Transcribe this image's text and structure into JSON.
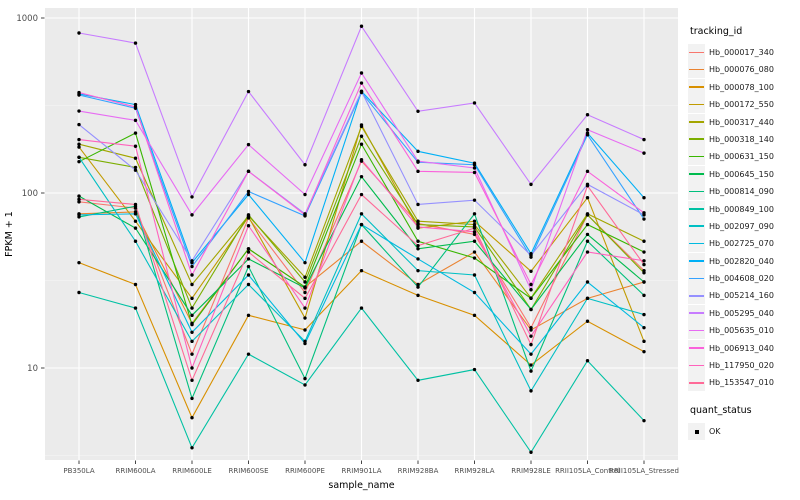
{
  "figure": {
    "background": "#ffffff",
    "panel_background": "#EBEBEB",
    "grid_major_color": "#FFFFFF",
    "grid_minor_color": "#F7F7F7",
    "tick_label_color": "#4D4D4D",
    "axis_title_color": "#000000"
  },
  "legend": {
    "tracking_title": "tracking_id",
    "quant_title": "quant_status",
    "quant_entries": [
      {
        "label": "OK",
        "marker": "black-square-point"
      }
    ]
  },
  "chart_data": {
    "type": "line",
    "title": "",
    "xlabel": "sample_name",
    "ylabel": "FPKM + 1",
    "y_scale": "log10",
    "y_ticks": [
      10,
      100,
      1000
    ],
    "y_minor_ticks": [
      3.162,
      31.62,
      316.2
    ],
    "ylim": [
      3.0,
      1140
    ],
    "grid": "on",
    "legend_position": "right",
    "point_color": "#000000",
    "categories": [
      "PB350LA",
      "RRIM600LA",
      "RRIM600LE",
      "RRIM600SE",
      "RRIM600PE",
      "RRIM901LA",
      "RRIM928BA",
      "RRIM928LA",
      "RRIM928LE",
      "RRII105LA_Control",
      "RRII105LA_Stressed"
    ],
    "series": [
      {
        "name": "Hb_000017_340",
        "color": "#F8766D",
        "values": [
          89,
          82,
          12,
          72,
          27,
          152,
          67,
          58,
          17,
          75,
          36
        ]
      },
      {
        "name": "Hb_000076_080",
        "color": "#EA8331",
        "values": [
          76,
          78,
          18,
          48,
          29,
          53,
          30,
          46,
          16.5,
          25,
          31
        ]
      },
      {
        "name": "Hb_000078_100",
        "color": "#D89000",
        "values": [
          40,
          30,
          5.2,
          20,
          16.5,
          36,
          26,
          20,
          10.4,
          18.5,
          12.4
        ]
      },
      {
        "name": "Hb_000172_550",
        "color": "#C09B00",
        "values": [
          183,
          69,
          25,
          73,
          19.3,
          245,
          63,
          69,
          35.7,
          94,
          14.2
        ]
      },
      {
        "name": "Hb_000317_440",
        "color": "#A3A500",
        "values": [
          190,
          158,
          30,
          74,
          33,
          240,
          69,
          66,
          25.1,
          76,
          53
        ]
      },
      {
        "name": "Hb_000318_140",
        "color": "#7CAE00",
        "values": [
          160,
          140,
          22,
          75,
          31,
          211,
          66,
          64,
          21.6,
          75,
          35
        ]
      },
      {
        "name": "Hb_000631_150",
        "color": "#39B600",
        "values": [
          151,
          220,
          17.7,
          48,
          29,
          190,
          53,
          42.5,
          25,
          66,
          46
        ]
      },
      {
        "name": "Hb_000645_150",
        "color": "#00BB4E",
        "values": [
          96,
          63,
          20,
          42,
          28.7,
          124,
          48,
          53,
          21.6,
          58,
          31
        ]
      },
      {
        "name": "Hb_000814_090",
        "color": "#00BF7D",
        "values": [
          73,
          84,
          6.7,
          38,
          8.7,
          66,
          29,
          76,
          9.6,
          53,
          26
        ]
      },
      {
        "name": "Hb_000849_100",
        "color": "#00C1A3",
        "values": [
          27,
          22,
          3.5,
          12,
          8.0,
          22,
          8.5,
          9.8,
          3.3,
          11,
          5.0
        ]
      },
      {
        "name": "Hb_002097_090",
        "color": "#00BFC4",
        "values": [
          160,
          53,
          14.2,
          30,
          14.2,
          76,
          36,
          34,
          7.4,
          25,
          20.2
        ]
      },
      {
        "name": "Hb_002725_070",
        "color": "#00BAE0",
        "values": [
          75,
          76,
          16,
          34,
          13.8,
          66,
          42,
          27,
          12,
          31,
          17
        ]
      },
      {
        "name": "Hb_002820_040",
        "color": "#00B0F6",
        "values": [
          368,
          320,
          40,
          98,
          40,
          381,
          173,
          148,
          45,
          220,
          94
        ]
      },
      {
        "name": "Hb_004608_020",
        "color": "#35A2FF",
        "values": [
          363,
          305,
          38,
          102,
          74,
          375,
          150,
          145,
          43,
          215,
          71
        ]
      },
      {
        "name": "Hb_005214_160",
        "color": "#9590FF",
        "values": [
          246,
          135,
          41,
          133,
          76,
          381,
          86,
          91,
          44,
          112,
          75
        ]
      },
      {
        "name": "Hb_005295_040",
        "color": "#C77CFF",
        "values": [
          821,
          719,
          95,
          380,
          145,
          897,
          293,
          327,
          112,
          280,
          202
        ]
      },
      {
        "name": "Hb_005635_010",
        "color": "#E76BF3",
        "values": [
          294,
          260,
          75,
          189,
          98,
          485,
          152,
          139,
          28,
          230,
          169
        ]
      },
      {
        "name": "Hb_006913_040",
        "color": "#FA62DB",
        "values": [
          375,
          310,
          34,
          133,
          75,
          425,
          133,
          131,
          30,
          133,
          77
        ]
      },
      {
        "name": "Hb_117950_020",
        "color": "#FF62BC",
        "values": [
          202,
          185,
          10,
          65,
          22,
          155,
          64,
          60,
          15.2,
          46,
          41
        ]
      },
      {
        "name": "Hb_153547_010",
        "color": "#FF6A98",
        "values": [
          92,
          86,
          8.5,
          46,
          25,
          98,
          50,
          63,
          13.6,
          110,
          39
        ]
      }
    ]
  }
}
